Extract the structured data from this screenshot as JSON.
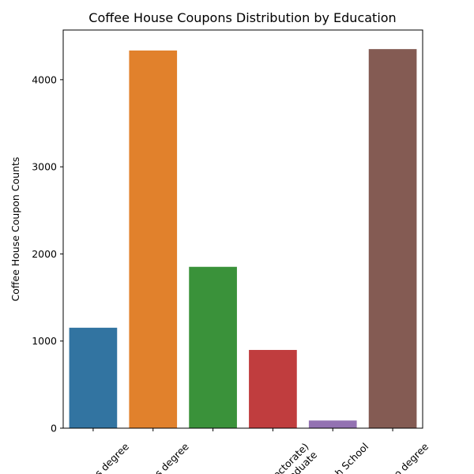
{
  "chart_data": {
    "type": "bar",
    "title": "Coffee House Coupons Distribution by Education",
    "xlabel": "",
    "ylabel": "Coffee House Coupon Counts",
    "ylim": [
      0,
      4570
    ],
    "yticks": [
      0,
      1000,
      2000,
      3000,
      4000
    ],
    "grid": false,
    "categories": [
      "Associates degree",
      "Bachelors degree",
      "Graduate degree (Masters or Doctorate)",
      "High School Graduate",
      "Some High School",
      "Some college - no degree"
    ],
    "category_labels_visible": [
      "s degree",
      "s degree",
      "",
      "octorate)\nGraduate",
      "h School",
      "o degree"
    ],
    "values": [
      1153,
      4335,
      1852,
      898,
      88,
      4351
    ],
    "colors": [
      "#3274a1",
      "#e1812c",
      "#3a923a",
      "#c03d3e",
      "#9372b2",
      "#845b53"
    ]
  }
}
